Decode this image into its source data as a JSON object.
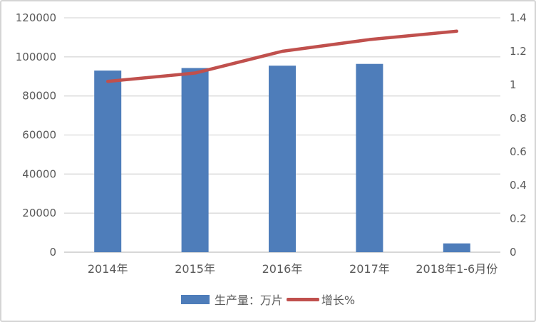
{
  "chart_data": {
    "type": "bar",
    "subtype": "combo-bar-line-dual-axis",
    "title": "",
    "categories": [
      "2014年",
      "2015年",
      "2016年",
      "2017年",
      "2018年1-6月份"
    ],
    "series": [
      {
        "name": "生产量：万片",
        "type": "bar",
        "axis": "left",
        "values": [
          93000,
          94300,
          95500,
          96400,
          4500
        ],
        "color": "#4e7dba"
      },
      {
        "name": "增长%",
        "type": "line",
        "axis": "right",
        "values": [
          1.02,
          1.07,
          1.2,
          1.27,
          1.32
        ],
        "color": "#c0504d"
      }
    ],
    "left_axis": {
      "min": 0,
      "max": 120000,
      "tick_interval": 20000,
      "labels": [
        "120000",
        "100000",
        "80000",
        "60000",
        "40000",
        "20000",
        "0"
      ]
    },
    "right_axis": {
      "min": 0,
      "max": 1.4,
      "tick_interval": 0.2,
      "labels": [
        "1.4",
        "1.2",
        "1",
        "0.8",
        "0.6",
        "0.4",
        "0.2",
        "0"
      ]
    },
    "grid": true,
    "legend_position": "bottom"
  },
  "legend": {
    "items": [
      {
        "label": "生产量：万片",
        "swatch": "bar"
      },
      {
        "label": "增长%",
        "swatch": "line"
      }
    ]
  },
  "colors": {
    "bar": "#4e7dba",
    "line": "#c0504d",
    "gridline": "#d9d9d9",
    "axis_line": "#bfbfbf",
    "text": "#595959",
    "border": "#d5d5d5",
    "background": "#ffffff"
  }
}
